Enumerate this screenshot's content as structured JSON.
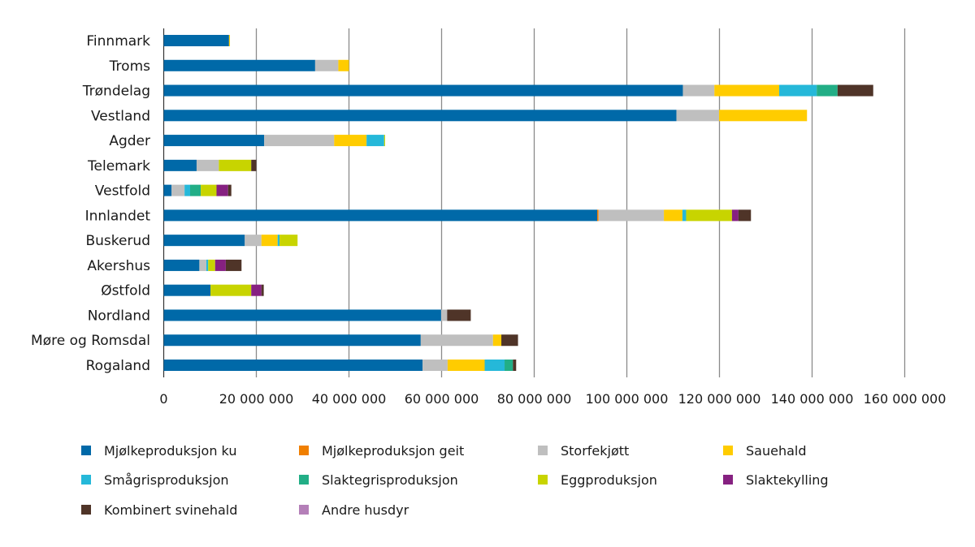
{
  "chart_data": {
    "type": "bar",
    "orientation": "horizontal",
    "stacked": true,
    "categories": [
      "Finnmark",
      "Troms",
      "Trøndelag",
      "Vestland",
      "Agder",
      "Telemark",
      "Vestfold",
      "Innlandet",
      "Buskerud",
      "Akershus",
      "Østfold",
      "Nordland",
      "Møre og Romsdal",
      "Rogaland"
    ],
    "xlim": [
      0,
      160000000
    ],
    "xticks": [
      0,
      20000000,
      40000000,
      60000000,
      80000000,
      100000000,
      120000000,
      140000000,
      160000000
    ],
    "xtick_labels": [
      "0",
      "20 000 000",
      "40 000 000",
      "60 000 000",
      "80 000 000",
      "100 000 000",
      "120 000 000",
      "140 000 000",
      "160 000 000"
    ],
    "grid": "vertical",
    "legend_position": "bottom",
    "series": [
      {
        "name": "Mjølkeproduksjon ku",
        "color": "#0069a8",
        "values": [
          14100000,
          32700000,
          112100000,
          110700000,
          21700000,
          7100000,
          1700000,
          93600000,
          17500000,
          7700000,
          10100000,
          59900000,
          55500000,
          55900000
        ]
      },
      {
        "name": "Mjølkeproduksjon geit",
        "color": "#f07f00",
        "values": [
          0,
          0,
          0,
          0,
          0,
          0,
          0,
          300000,
          0,
          0,
          0,
          0,
          0,
          0
        ]
      },
      {
        "name": "Storfekjøtt",
        "color": "#bfbfbf",
        "values": [
          0,
          5000000,
          6800000,
          9200000,
          15100000,
          4800000,
          2800000,
          14100000,
          3600000,
          1500000,
          0,
          1300000,
          15600000,
          5400000
        ]
      },
      {
        "name": "Sauehald",
        "color": "#ffcc00",
        "values": [
          200000,
          2300000,
          14000000,
          19000000,
          7000000,
          0,
          0,
          4000000,
          3500000,
          0,
          0,
          0,
          1800000,
          8000000
        ]
      },
      {
        "name": "Smågrisproduksjon",
        "color": "#25b8d9",
        "values": [
          0,
          0,
          8100000,
          0,
          3800000,
          0,
          1200000,
          800000,
          400000,
          400000,
          0,
          0,
          0,
          4300000
        ]
      },
      {
        "name": "Slaktegrisproduksjon",
        "color": "#22ae86",
        "values": [
          0,
          0,
          4500000,
          0,
          0,
          0,
          2300000,
          0,
          0,
          0,
          0,
          0,
          0,
          1800000
        ]
      },
      {
        "name": "Eggproduksjon",
        "color": "#c8d400",
        "values": [
          0,
          0,
          0,
          0,
          200000,
          7000000,
          3400000,
          9900000,
          3900000,
          1500000,
          8800000,
          0,
          0,
          0
        ]
      },
      {
        "name": "Slaktekylling",
        "color": "#862181",
        "values": [
          0,
          0,
          0,
          0,
          0,
          0,
          2500000,
          1400000,
          0,
          2300000,
          2200000,
          0,
          0,
          0
        ]
      },
      {
        "name": "Kombinert svinehald",
        "color": "#4f3428",
        "values": [
          0,
          0,
          7700000,
          0,
          0,
          1100000,
          700000,
          2700000,
          0,
          3400000,
          500000,
          5100000,
          3600000,
          700000
        ]
      },
      {
        "name": "Andre husdyr",
        "color": "#b47fb8",
        "values": [
          0,
          0,
          0,
          0,
          0,
          0,
          0,
          0,
          0,
          0,
          0,
          0,
          0,
          0
        ]
      }
    ]
  }
}
